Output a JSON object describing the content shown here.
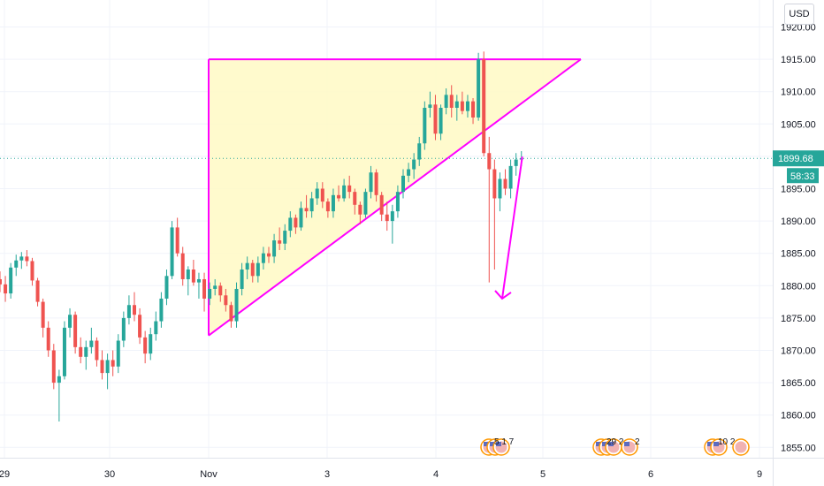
{
  "currency_label": "USD",
  "chart_data": {
    "type": "candlestick",
    "y_axis": {
      "ticks": [
        "1920.00",
        "1915.00",
        "1910.00",
        "1905.00",
        "1900.00",
        "1895.00",
        "1890.00",
        "1885.00",
        "1880.00",
        "1875.00",
        "1870.00",
        "1865.00",
        "1860.00",
        "1855.00"
      ],
      "tick_values": [
        1920,
        1915,
        1910,
        1905,
        1900,
        1895,
        1890,
        1885,
        1880,
        1875,
        1870,
        1865,
        1860,
        1855
      ],
      "ylim": [
        1853.4,
        1922.8
      ],
      "position": "right"
    },
    "x_axis": {
      "ticks": [
        "29",
        "30",
        "Nov",
        "3",
        "4",
        "5",
        "6",
        "9"
      ]
    },
    "current_price": {
      "value": 1899.68,
      "label": "1899.68",
      "countdown": "58:33",
      "color": "#26a69a"
    },
    "colors": {
      "up": "#26a69a",
      "down": "#ef5350",
      "pattern": "#ff00ff",
      "pattern_fill": "#fff9c4",
      "grid": "#f0f3fa"
    },
    "annotations": {
      "pattern": "ascending triangle",
      "resistance": 1915.0,
      "support_low": 1872.3,
      "breakdown_target": 1878.0
    },
    "event_markers": [
      {
        "label": "5 1 7"
      },
      {
        "label": "29 2"
      },
      {
        "label": "2"
      },
      {
        "label": "10 2"
      }
    ],
    "candles": [
      [
        1881.0,
        1882.2,
        1879.0,
        1880.2
      ],
      [
        1880.2,
        1881.5,
        1877.5,
        1878.8
      ],
      [
        1878.8,
        1883.5,
        1878.0,
        1882.8
      ],
      [
        1882.8,
        1884.8,
        1881.5,
        1883.9
      ],
      [
        1883.9,
        1885.2,
        1882.6,
        1884.5
      ],
      [
        1884.5,
        1885.5,
        1883.0,
        1883.8
      ],
      [
        1883.8,
        1884.3,
        1880.0,
        1880.8
      ],
      [
        1880.8,
        1881.2,
        1876.8,
        1877.5
      ],
      [
        1877.5,
        1878.0,
        1872.0,
        1873.5
      ],
      [
        1873.5,
        1874.5,
        1869.0,
        1870.0
      ],
      [
        1870.0,
        1871.0,
        1864.0,
        1865.0
      ],
      [
        1865.0,
        1867.0,
        1859.0,
        1866.0
      ],
      [
        1866.0,
        1874.5,
        1865.5,
        1873.5
      ],
      [
        1873.5,
        1876.5,
        1872.0,
        1875.5
      ],
      [
        1875.5,
        1876.0,
        1869.5,
        1870.5
      ],
      [
        1870.5,
        1872.0,
        1868.0,
        1869.0
      ],
      [
        1869.0,
        1871.5,
        1867.0,
        1870.5
      ],
      [
        1870.5,
        1873.5,
        1869.5,
        1871.5
      ],
      [
        1871.5,
        1872.0,
        1867.5,
        1868.5
      ],
      [
        1868.5,
        1870.0,
        1865.5,
        1866.5
      ],
      [
        1866.5,
        1869.5,
        1864.0,
        1868.5
      ],
      [
        1868.5,
        1870.0,
        1866.0,
        1867.5
      ],
      [
        1867.5,
        1872.5,
        1866.5,
        1871.5
      ],
      [
        1871.5,
        1876.0,
        1870.5,
        1875.0
      ],
      [
        1875.0,
        1878.5,
        1874.0,
        1877.0
      ],
      [
        1877.0,
        1879.0,
        1874.5,
        1875.5
      ],
      [
        1875.5,
        1876.5,
        1871.0,
        1872.0
      ],
      [
        1872.0,
        1873.0,
        1868.0,
        1869.5
      ],
      [
        1869.5,
        1873.5,
        1868.5,
        1872.5
      ],
      [
        1872.5,
        1876.0,
        1871.5,
        1874.5
      ],
      [
        1874.5,
        1879.0,
        1873.5,
        1878.0
      ],
      [
        1878.0,
        1882.5,
        1877.0,
        1881.5
      ],
      [
        1881.5,
        1890.0,
        1881.0,
        1889.0
      ],
      [
        1889.0,
        1890.5,
        1884.5,
        1885.0
      ],
      [
        1885.0,
        1886.0,
        1880.0,
        1881.0
      ],
      [
        1881.0,
        1883.0,
        1878.5,
        1882.5
      ],
      [
        1882.5,
        1884.0,
        1880.0,
        1880.5
      ],
      [
        1880.5,
        1882.0,
        1878.0,
        1881.0
      ],
      [
        1881.0,
        1882.0,
        1876.0,
        1878.0
      ],
      [
        1878.0,
        1880.5,
        1877.0,
        1879.5
      ],
      [
        1879.5,
        1881.0,
        1878.5,
        1880.0
      ],
      [
        1880.0,
        1880.5,
        1877.5,
        1878.5
      ],
      [
        1878.5,
        1879.5,
        1876.0,
        1877.0
      ],
      [
        1877.0,
        1877.5,
        1873.5,
        1874.5
      ],
      [
        1874.5,
        1880.5,
        1873.5,
        1879.5
      ],
      [
        1879.5,
        1883.5,
        1878.5,
        1882.5
      ],
      [
        1882.5,
        1884.5,
        1881.0,
        1883.5
      ],
      [
        1883.5,
        1884.0,
        1880.5,
        1881.5
      ],
      [
        1881.5,
        1884.5,
        1880.5,
        1883.5
      ],
      [
        1883.5,
        1886.0,
        1882.5,
        1885.0
      ],
      [
        1885.0,
        1886.0,
        1883.5,
        1884.5
      ],
      [
        1884.5,
        1888.0,
        1883.5,
        1887.0
      ],
      [
        1887.0,
        1889.0,
        1885.5,
        1886.5
      ],
      [
        1886.5,
        1889.5,
        1885.5,
        1888.5
      ],
      [
        1888.5,
        1891.5,
        1887.5,
        1890.5
      ],
      [
        1890.5,
        1891.0,
        1888.0,
        1889.0
      ],
      [
        1889.0,
        1893.0,
        1888.5,
        1892.0
      ],
      [
        1892.0,
        1894.0,
        1890.5,
        1891.5
      ],
      [
        1891.5,
        1894.5,
        1890.5,
        1893.5
      ],
      [
        1893.5,
        1896.0,
        1892.5,
        1895.0
      ],
      [
        1895.0,
        1896.0,
        1892.0,
        1893.0
      ],
      [
        1893.0,
        1893.5,
        1890.5,
        1891.5
      ],
      [
        1891.5,
        1895.0,
        1890.5,
        1894.0
      ],
      [
        1894.0,
        1895.5,
        1893.0,
        1893.5
      ],
      [
        1893.5,
        1896.5,
        1893.0,
        1895.5
      ],
      [
        1895.5,
        1897.0,
        1893.5,
        1894.5
      ],
      [
        1894.5,
        1895.0,
        1891.0,
        1892.5
      ],
      [
        1892.5,
        1893.0,
        1889.5,
        1891.0
      ],
      [
        1891.0,
        1895.0,
        1890.5,
        1894.5
      ],
      [
        1894.5,
        1898.5,
        1893.5,
        1897.5
      ],
      [
        1897.5,
        1898.0,
        1893.0,
        1894.0
      ],
      [
        1894.0,
        1894.5,
        1890.0,
        1891.0
      ],
      [
        1891.0,
        1893.0,
        1888.5,
        1890.0
      ],
      [
        1890.0,
        1892.5,
        1886.5,
        1891.5
      ],
      [
        1891.5,
        1895.5,
        1890.5,
        1894.5
      ],
      [
        1894.5,
        1898.0,
        1893.5,
        1897.0
      ],
      [
        1897.0,
        1899.0,
        1896.0,
        1898.0
      ],
      [
        1898.0,
        1900.5,
        1896.5,
        1899.5
      ],
      [
        1899.5,
        1903.0,
        1898.5,
        1902.0
      ],
      [
        1902.0,
        1908.5,
        1901.0,
        1907.5
      ],
      [
        1907.5,
        1910.0,
        1906.0,
        1908.0
      ],
      [
        1908.0,
        1909.5,
        1902.5,
        1903.5
      ],
      [
        1903.5,
        1908.0,
        1902.5,
        1907.5
      ],
      [
        1907.5,
        1910.5,
        1906.5,
        1909.5
      ],
      [
        1909.5,
        1911.0,
        1906.0,
        1907.5
      ],
      [
        1907.5,
        1909.5,
        1905.5,
        1908.5
      ],
      [
        1908.5,
        1910.0,
        1906.5,
        1907.0
      ],
      [
        1907.0,
        1909.5,
        1906.0,
        1908.5
      ],
      [
        1908.5,
        1909.0,
        1905.0,
        1906.0
      ],
      [
        1906.0,
        1916.0,
        1905.5,
        1915.0
      ],
      [
        1915.0,
        1916.2,
        1900.0,
        1900.5
      ],
      [
        1900.5,
        1903.0,
        1880.5,
        1898.0
      ],
      [
        1898.0,
        1899.5,
        1882.5,
        1893.5
      ],
      [
        1893.5,
        1897.5,
        1891.5,
        1896.5
      ],
      [
        1896.5,
        1898.0,
        1894.0,
        1895.0
      ],
      [
        1895.0,
        1899.5,
        1893.5,
        1898.5
      ],
      [
        1898.5,
        1900.5,
        1897.0,
        1899.5
      ],
      [
        1899.5,
        1900.8,
        1898.5,
        1899.7
      ]
    ]
  }
}
